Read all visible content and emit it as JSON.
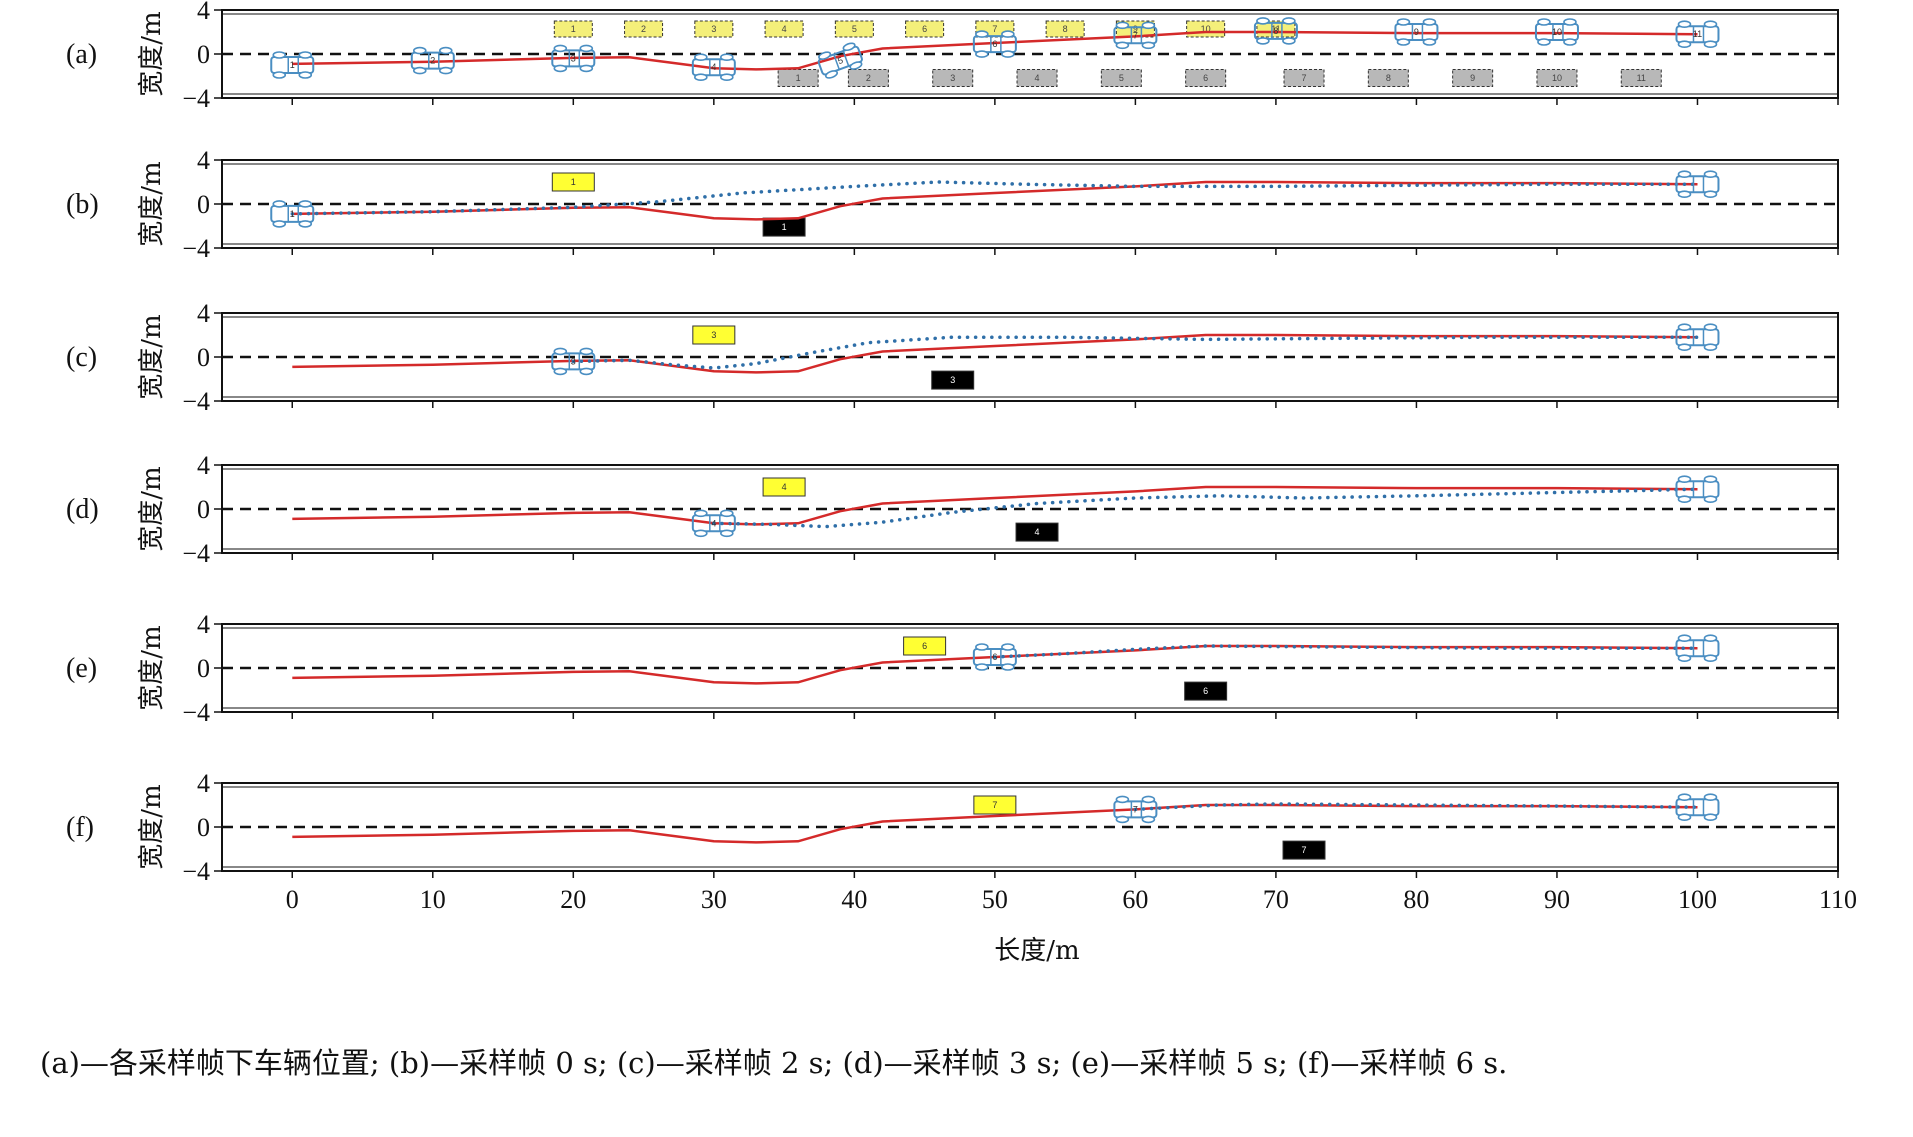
{
  "caption": "(a)—各采样帧下车辆位置; (b)—采样帧 0 s; (c)—采样帧 2 s; (d)—采样帧 3 s; (e)—采样帧 5 s; (f)—采样帧 6 s.",
  "colors": {
    "trajectory": "#d42a2a",
    "predicted": "#2f6fa8",
    "vehicle": "#4a8ec2",
    "yellow_box": "#ffff33",
    "yellow_box_light": "#f4ef7a",
    "gray_box": "#b8b8b8",
    "black_box": "#000000"
  },
  "chart_data": {
    "type": "line",
    "xlabel": "长度/m",
    "ylabel": "宽度/m",
    "xlim": [
      -5,
      110
    ],
    "ylim": [
      -4,
      4
    ],
    "xticks": [
      0,
      10,
      20,
      30,
      40,
      50,
      60,
      70,
      80,
      90,
      100,
      110
    ],
    "yticks": [
      -4,
      0,
      4
    ],
    "trajectory": [
      [
        0,
        -0.9
      ],
      [
        10,
        -0.7
      ],
      [
        20,
        -0.35
      ],
      [
        24,
        -0.3
      ],
      [
        27,
        -0.8
      ],
      [
        30,
        -1.3
      ],
      [
        33,
        -1.4
      ],
      [
        36,
        -1.3
      ],
      [
        39,
        -0.2
      ],
      [
        42,
        0.5
      ],
      [
        50,
        1.0
      ],
      [
        60,
        1.6
      ],
      [
        65,
        2.0
      ],
      [
        70,
        2.0
      ],
      [
        80,
        1.9
      ],
      [
        90,
        1.9
      ],
      [
        100,
        1.8
      ]
    ],
    "panels": [
      {
        "label": "(a)",
        "vehicles": [
          {
            "id": "1",
            "x": 0,
            "y": -1.0
          },
          {
            "id": "2",
            "x": 10,
            "y": -0.6
          },
          {
            "id": "3",
            "x": 20,
            "y": -0.4
          },
          {
            "id": "4",
            "x": 30,
            "y": -1.2
          },
          {
            "id": "5",
            "x": 39,
            "y": -0.6
          },
          {
            "id": "6",
            "x": 50,
            "y": 0.9
          },
          {
            "id": "7",
            "x": 60,
            "y": 1.7
          },
          {
            "id": "8",
            "x": 70,
            "y": 2.1
          },
          {
            "id": "9",
            "x": 80,
            "y": 2.0
          },
          {
            "id": "10",
            "x": 90,
            "y": 2.0
          },
          {
            "id": "11",
            "x": 100,
            "y": 1.8
          }
        ],
        "yellow_boxes": [
          {
            "id": "1",
            "x": 20
          },
          {
            "id": "2",
            "x": 25
          },
          {
            "id": "3",
            "x": 30
          },
          {
            "id": "4",
            "x": 35
          },
          {
            "id": "5",
            "x": 40
          },
          {
            "id": "6",
            "x": 45
          },
          {
            "id": "7",
            "x": 50
          },
          {
            "id": "8",
            "x": 55
          },
          {
            "id": "9",
            "x": 60
          },
          {
            "id": "10",
            "x": 65
          },
          {
            "id": "11",
            "x": 70
          }
        ],
        "gray_boxes": [
          {
            "id": "1",
            "x": 36
          },
          {
            "id": "2",
            "x": 41
          },
          {
            "id": "3",
            "x": 47
          },
          {
            "id": "4",
            "x": 53
          },
          {
            "id": "5",
            "x": 59
          },
          {
            "id": "6",
            "x": 65
          },
          {
            "id": "7",
            "x": 72
          },
          {
            "id": "8",
            "x": 78
          },
          {
            "id": "9",
            "x": 84
          },
          {
            "id": "10",
            "x": 90
          },
          {
            "id": "11",
            "x": 96
          }
        ]
      },
      {
        "label": "(b)",
        "vehicles": [
          {
            "id": "1",
            "x": 0,
            "y": -0.9
          },
          {
            "id": "",
            "x": 100,
            "y": 1.8
          }
        ],
        "yellow_box": {
          "id": "1",
          "x": 20,
          "y": 2.0
        },
        "black_box": {
          "id": "1",
          "x": 35,
          "y": -2.1
        },
        "predicted": [
          [
            0,
            -0.9
          ],
          [
            10,
            -0.7
          ],
          [
            20,
            -0.3
          ],
          [
            26,
            0.2
          ],
          [
            32,
            1.0
          ],
          [
            40,
            1.6
          ],
          [
            46,
            2.0
          ],
          [
            52,
            1.8
          ],
          [
            60,
            1.6
          ],
          [
            70,
            1.6
          ],
          [
            80,
            1.7
          ],
          [
            90,
            1.8
          ],
          [
            100,
            1.8
          ]
        ]
      },
      {
        "label": "(c)",
        "vehicles": [
          {
            "id": "3",
            "x": 20,
            "y": -0.4
          },
          {
            "id": "",
            "x": 100,
            "y": 1.8
          }
        ],
        "yellow_box": {
          "id": "3",
          "x": 30,
          "y": 2.0
        },
        "black_box": {
          "id": "3",
          "x": 47,
          "y": -2.1
        },
        "predicted": [
          [
            20,
            -0.4
          ],
          [
            24,
            -0.3
          ],
          [
            27,
            -0.7
          ],
          [
            30,
            -1.0
          ],
          [
            33,
            -0.6
          ],
          [
            37,
            0.4
          ],
          [
            41,
            1.3
          ],
          [
            47,
            1.8
          ],
          [
            55,
            1.8
          ],
          [
            65,
            1.6
          ],
          [
            75,
            1.7
          ],
          [
            85,
            1.8
          ],
          [
            100,
            1.8
          ]
        ]
      },
      {
        "label": "(d)",
        "vehicles": [
          {
            "id": "4",
            "x": 30,
            "y": -1.3
          },
          {
            "id": "",
            "x": 100,
            "y": 1.8
          }
        ],
        "yellow_box": {
          "id": "4",
          "x": 35,
          "y": 2.0
        },
        "black_box": {
          "id": "4",
          "x": 53,
          "y": -2.1
        },
        "predicted": [
          [
            30,
            -1.3
          ],
          [
            34,
            -1.4
          ],
          [
            38,
            -1.6
          ],
          [
            42,
            -1.2
          ],
          [
            47,
            -0.3
          ],
          [
            53,
            0.5
          ],
          [
            60,
            1.0
          ],
          [
            66,
            1.2
          ],
          [
            72,
            1.0
          ],
          [
            80,
            1.2
          ],
          [
            90,
            1.5
          ],
          [
            100,
            1.8
          ]
        ]
      },
      {
        "label": "(e)",
        "vehicles": [
          {
            "id": "6",
            "x": 50,
            "y": 1.0
          },
          {
            "id": "",
            "x": 100,
            "y": 1.8
          }
        ],
        "yellow_box": {
          "id": "6",
          "x": 45,
          "y": 2.0
        },
        "black_box": {
          "id": "6",
          "x": 65,
          "y": -2.1
        },
        "predicted": [
          [
            50,
            1.0
          ],
          [
            55,
            1.3
          ],
          [
            60,
            1.7
          ],
          [
            65,
            2.0
          ],
          [
            75,
            1.9
          ],
          [
            85,
            1.8
          ],
          [
            100,
            1.8
          ]
        ]
      },
      {
        "label": "(f)",
        "vehicles": [
          {
            "id": "7",
            "x": 60,
            "y": 1.6
          },
          {
            "id": "",
            "x": 100,
            "y": 1.8
          }
        ],
        "yellow_box": {
          "id": "7",
          "x": 50,
          "y": 2.0
        },
        "black_box": {
          "id": "7",
          "x": 72,
          "y": -2.1
        },
        "predicted": [
          [
            60,
            1.6
          ],
          [
            66,
            2.0
          ],
          [
            70,
            2.1
          ],
          [
            80,
            2.0
          ],
          [
            90,
            1.9
          ],
          [
            100,
            1.8
          ]
        ]
      }
    ]
  }
}
